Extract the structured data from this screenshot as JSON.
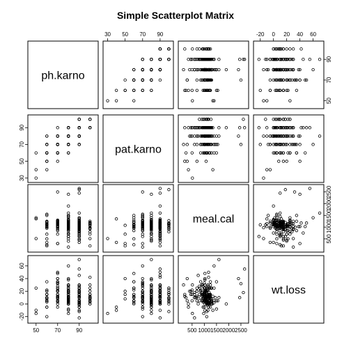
{
  "chart_data": {
    "type": "scatter-matrix",
    "title": "Simple Scatterplot Matrix",
    "variables": [
      {
        "name": "ph.karno",
        "range": [
          45,
          105
        ],
        "ticks": [
          30,
          50,
          70,
          90
        ]
      },
      {
        "name": "pat.karno",
        "range": [
          28,
          102
        ],
        "ticks": [
          30,
          50,
          70,
          90
        ]
      },
      {
        "name": "meal.cal",
        "range": [
          50,
          2700
        ],
        "ticks": [
          500,
          1000,
          1500,
          2000,
          2500
        ]
      },
      {
        "name": "wt.loss",
        "range": [
          -26,
          72
        ],
        "ticks": [
          -20,
          0,
          20,
          40,
          60
        ]
      }
    ],
    "observations": [
      [
        90,
        100,
        1175,
        15
      ],
      [
        90,
        90,
        1225,
        15
      ],
      [
        90,
        90,
        1150,
        3
      ],
      [
        100,
        90,
        513,
        30
      ],
      [
        90,
        80,
        900,
        15
      ],
      [
        80,
        80,
        1025,
        12
      ],
      [
        80,
        70,
        1200,
        10
      ],
      [
        70,
        60,
        1100,
        25
      ],
      [
        60,
        60,
        1500,
        35
      ],
      [
        100,
        90,
        940,
        5
      ],
      [
        90,
        80,
        1175,
        -5
      ],
      [
        80,
        70,
        1025,
        15
      ],
      [
        80,
        80,
        750,
        0
      ],
      [
        90,
        100,
        1275,
        25
      ],
      [
        70,
        80,
        1100,
        20
      ],
      [
        80,
        90,
        1300,
        5
      ],
      [
        90,
        90,
        975,
        10
      ],
      [
        60,
        70,
        1000,
        -5
      ],
      [
        80,
        80,
        900,
        30
      ],
      [
        90,
        70,
        850,
        20
      ],
      [
        70,
        60,
        1225,
        15
      ],
      [
        90,
        90,
        600,
        10
      ],
      [
        80,
        60,
        1100,
        0
      ],
      [
        100,
        100,
        1150,
        0
      ],
      [
        90,
        90,
        800,
        28
      ],
      [
        70,
        70,
        1025,
        40
      ],
      [
        90,
        80,
        1175,
        2
      ],
      [
        80,
        70,
        600,
        10
      ],
      [
        90,
        90,
        1075,
        20
      ],
      [
        80,
        80,
        700,
        5
      ],
      [
        70,
        70,
        1025,
        25
      ],
      [
        100,
        90,
        1100,
        10
      ],
      [
        90,
        90,
        1150,
        -10
      ],
      [
        80,
        90,
        1200,
        12
      ],
      [
        60,
        50,
        700,
        20
      ],
      [
        90,
        80,
        1300,
        3
      ],
      [
        80,
        80,
        950,
        8
      ],
      [
        70,
        70,
        1250,
        35
      ],
      [
        90,
        90,
        950,
        15
      ],
      [
        100,
        100,
        1000,
        15
      ],
      [
        80,
        90,
        1025,
        10
      ],
      [
        90,
        80,
        1100,
        0
      ],
      [
        70,
        80,
        1175,
        5
      ],
      [
        90,
        70,
        1025,
        12
      ],
      [
        80,
        80,
        850,
        22
      ],
      [
        50,
        40,
        1350,
        -10
      ],
      [
        60,
        80,
        1250,
        15
      ],
      [
        90,
        90,
        450,
        20
      ],
      [
        80,
        60,
        1075,
        5
      ],
      [
        90,
        90,
        1025,
        30
      ],
      [
        70,
        70,
        1125,
        0
      ],
      [
        80,
        70,
        1250,
        10
      ],
      [
        100,
        90,
        925,
        15
      ],
      [
        90,
        90,
        1200,
        5
      ],
      [
        80,
        80,
        1050,
        7
      ],
      [
        60,
        60,
        950,
        10
      ],
      [
        90,
        80,
        1400,
        2
      ],
      [
        80,
        90,
        600,
        18
      ],
      [
        70,
        60,
        1000,
        15
      ],
      [
        90,
        90,
        825,
        25
      ],
      [
        80,
        80,
        1200,
        0
      ],
      [
        100,
        100,
        1100,
        3
      ],
      [
        90,
        70,
        950,
        -5
      ],
      [
        80,
        80,
        1025,
        20
      ],
      [
        70,
        70,
        700,
        10
      ],
      [
        90,
        90,
        1075,
        12
      ],
      [
        80,
        70,
        1300,
        8
      ],
      [
        60,
        70,
        1150,
        3
      ],
      [
        90,
        80,
        900,
        5
      ],
      [
        80,
        90,
        1100,
        15
      ],
      [
        90,
        90,
        1000,
        25
      ],
      [
        100,
        90,
        1250,
        10
      ],
      [
        70,
        80,
        1025,
        20
      ],
      [
        80,
        80,
        1175,
        0
      ],
      [
        90,
        100,
        900,
        18
      ],
      [
        80,
        70,
        1450,
        10
      ],
      [
        70,
        60,
        1100,
        5
      ],
      [
        90,
        90,
        1150,
        30
      ],
      [
        80,
        80,
        700,
        12
      ],
      [
        90,
        80,
        1025,
        0
      ],
      [
        60,
        60,
        1000,
        22
      ],
      [
        80,
        90,
        1225,
        5
      ],
      [
        90,
        90,
        800,
        15
      ],
      [
        100,
        100,
        1150,
        8
      ],
      [
        70,
        70,
        950,
        28
      ],
      [
        80,
        80,
        1100,
        3
      ],
      [
        90,
        90,
        1350,
        12
      ],
      [
        80,
        70,
        1000,
        18
      ],
      [
        90,
        80,
        500,
        15
      ],
      [
        70,
        80,
        1250,
        -5
      ],
      [
        80,
        80,
        1075,
        10
      ],
      [
        90,
        90,
        1025,
        6
      ],
      [
        100,
        90,
        700,
        20
      ],
      [
        80,
        60,
        1200,
        2
      ],
      [
        90,
        100,
        1100,
        25
      ],
      [
        70,
        70,
        1150,
        10
      ],
      [
        80,
        80,
        925,
        30
      ],
      [
        90,
        90,
        1275,
        0
      ],
      [
        60,
        50,
        1075,
        8
      ],
      [
        80,
        90,
        1000,
        15
      ],
      [
        90,
        90,
        1225,
        12
      ],
      [
        80,
        80,
        1500,
        5
      ],
      [
        70,
        70,
        1025,
        20
      ],
      [
        90,
        80,
        1125,
        -2
      ],
      [
        100,
        100,
        950,
        10
      ],
      [
        80,
        80,
        1200,
        18
      ],
      [
        90,
        90,
        1000,
        3
      ],
      [
        70,
        60,
        1300,
        25
      ],
      [
        80,
        70,
        850,
        10
      ],
      [
        90,
        90,
        1175,
        15
      ],
      [
        80,
        80,
        1100,
        0
      ],
      [
        90,
        90,
        650,
        10
      ],
      [
        60,
        70,
        1550,
        5
      ],
      [
        80,
        80,
        1025,
        12
      ],
      [
        90,
        100,
        1150,
        22
      ],
      [
        70,
        80,
        1050,
        8
      ],
      [
        100,
        90,
        1200,
        0
      ],
      [
        80,
        80,
        975,
        15
      ],
      [
        90,
        90,
        1100,
        10
      ],
      [
        80,
        90,
        1025,
        20
      ],
      [
        70,
        70,
        1275,
        3
      ],
      [
        90,
        80,
        1000,
        15
      ],
      [
        80,
        70,
        1175,
        5
      ],
      [
        90,
        90,
        900,
        18
      ],
      [
        60,
        60,
        1125,
        10
      ],
      [
        80,
        80,
        1025,
        -10
      ],
      [
        90,
        90,
        1225,
        25
      ],
      [
        100,
        100,
        1075,
        8
      ],
      [
        70,
        80,
        1150,
        12
      ],
      [
        80,
        80,
        1300,
        0
      ],
      [
        90,
        90,
        1000,
        15
      ],
      [
        80,
        70,
        1100,
        5
      ],
      [
        90,
        80,
        1025,
        20
      ],
      [
        70,
        70,
        1200,
        10
      ],
      [
        80,
        80,
        1150,
        28
      ],
      [
        90,
        90,
        1075,
        2
      ],
      [
        80,
        90,
        1600,
        10
      ],
      [
        90,
        100,
        1000,
        15
      ],
      [
        60,
        60,
        1225,
        5
      ],
      [
        80,
        80,
        1025,
        18
      ],
      [
        90,
        90,
        1175,
        0
      ],
      [
        70,
        70,
        1000,
        12
      ],
      [
        100,
        90,
        1100,
        25
      ],
      [
        80,
        80,
        1250,
        8
      ],
      [
        90,
        80,
        1025,
        10
      ],
      [
        80,
        70,
        1150,
        15
      ],
      [
        90,
        90,
        950,
        3
      ],
      [
        70,
        80,
        1125,
        22
      ],
      [
        80,
        80,
        1075,
        5
      ],
      [
        90,
        90,
        1200,
        10
      ],
      [
        60,
        70,
        1025,
        15
      ],
      [
        80,
        80,
        1325,
        0
      ],
      [
        90,
        90,
        1050,
        20
      ],
      [
        100,
        100,
        1175,
        10
      ],
      [
        80,
        90,
        1000,
        5
      ],
      [
        70,
        60,
        1100,
        12
      ],
      [
        90,
        80,
        1225,
        15
      ],
      [
        80,
        80,
        1025,
        8
      ],
      [
        90,
        90,
        1150,
        25
      ],
      [
        80,
        70,
        1075,
        3
      ],
      [
        50,
        30,
        513,
        -15
      ],
      [
        60,
        50,
        200,
        15
      ],
      [
        70,
        70,
        300,
        5
      ],
      [
        80,
        80,
        400,
        20
      ],
      [
        90,
        90,
        350,
        0
      ],
      [
        60,
        60,
        250,
        10
      ],
      [
        80,
        70,
        150,
        30
      ],
      [
        100,
        90,
        200,
        12
      ],
      [
        70,
        50,
        300,
        40
      ],
      [
        90,
        80,
        450,
        15
      ],
      [
        80,
        90,
        500,
        22
      ],
      [
        60,
        40,
        350,
        -5
      ],
      [
        80,
        80,
        1300,
        5
      ],
      [
        70,
        80,
        1150,
        12
      ],
      [
        50,
        60,
        1400,
        25
      ],
      [
        80,
        70,
        1500,
        -8
      ],
      [
        90,
        90,
        2450,
        10
      ],
      [
        80,
        80,
        2400,
        40
      ],
      [
        90,
        100,
        2600,
        18
      ],
      [
        70,
        70,
        2500,
        32
      ],
      [
        90,
        90,
        2650,
        55
      ],
      [
        80,
        90,
        1900,
        0
      ],
      [
        90,
        80,
        1600,
        70
      ],
      [
        80,
        70,
        1400,
        60
      ],
      [
        70,
        60,
        1025,
        48
      ],
      [
        90,
        90,
        750,
        45
      ],
      [
        80,
        80,
        1025,
        38
      ],
      [
        70,
        90,
        1175,
        50
      ],
      [
        60,
        70,
        1100,
        -20
      ],
      [
        80,
        80,
        975,
        -15
      ],
      [
        90,
        90,
        600,
        -22
      ],
      [
        70,
        60,
        850,
        35
      ],
      [
        100,
        90,
        1175,
        42
      ],
      [
        80,
        80,
        1250,
        30
      ],
      [
        90,
        100,
        1100,
        -12
      ],
      [
        70,
        70,
        1000,
        33
      ],
      [
        60,
        60,
        500,
        5
      ],
      [
        80,
        80,
        600,
        15
      ],
      [
        90,
        90,
        700,
        25
      ],
      [
        100,
        100,
        800,
        5
      ],
      [
        70,
        70,
        900,
        15
      ],
      [
        80,
        80,
        1000,
        25
      ],
      [
        90,
        90,
        1100,
        5
      ],
      [
        60,
        80,
        1200,
        15
      ],
      [
        80,
        90,
        1300,
        25
      ],
      [
        90,
        70,
        1400,
        5
      ]
    ]
  }
}
